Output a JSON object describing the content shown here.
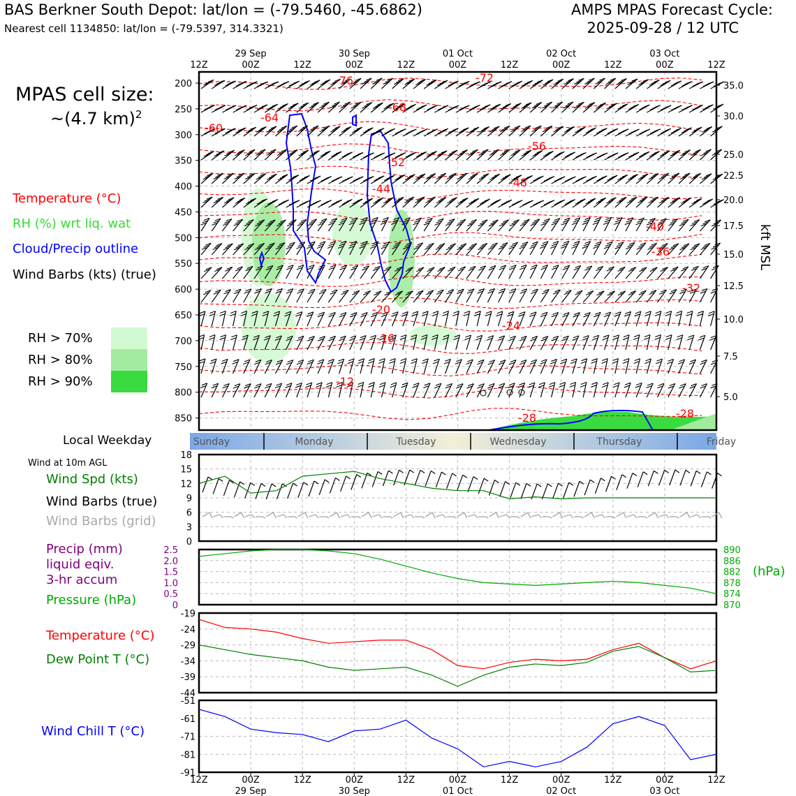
{
  "header": {
    "station": "BAS Berkner South Depot: lat/lon = (-79.5460, -45.6862)",
    "cell": "Nearest cell 1134850: lat/lon = (-79.5397, 314.3321)",
    "model": "AMPS MPAS Forecast Cycle:",
    "cycle": "2025-09-28 / 12 UTC"
  },
  "cell_size": {
    "line1": "MPAS cell size:",
    "line2_prefix": "~(4.7 km)",
    "line2_sup": "2"
  },
  "legend": {
    "temperature": "Temperature (°C)",
    "rh": "RH (%) wrt liq. wat",
    "cloud": "Cloud/Precip outline",
    "wind": "Wind Barbs (kts) (true)",
    "rh_levels": [
      "RH > 70%",
      "RH > 80%",
      "RH > 90%"
    ]
  },
  "colors": {
    "temperature": "#ff0000",
    "rh70": "#d2fad2",
    "rh80": "#a3eb9f",
    "rh90": "#3adb41",
    "cloud": "#0000ff",
    "wind_speed": "#008000",
    "pressure": "#00aa00",
    "precip": "#800080",
    "dewpoint": "#008000",
    "windchill": "#0000ff",
    "grid_barbs": "#aaaaaa"
  },
  "time_axis": {
    "hour_labels": [
      "12Z",
      "00Z",
      "12Z",
      "00Z",
      "12Z",
      "00Z",
      "12Z",
      "00Z",
      "12Z",
      "00Z",
      "12Z"
    ],
    "date_labels": [
      "29 Sep",
      "30 Sep",
      "01 Oct",
      "02 Oct",
      "03 Oct"
    ]
  },
  "weekday": {
    "title": "Local Weekday",
    "days": [
      "Sunday",
      "Monday",
      "Tuesday",
      "Wednesday",
      "Thursday",
      "Friday"
    ]
  },
  "surface_title": "Wind at 10m AGL",
  "panel_labels": {
    "wind_speed": "Wind Spd (kts)",
    "wind_barbs": "Wind Barbs (true)",
    "wind_barbs_grid": "Wind Barbs (grid)",
    "precip1": "Precip (mm)",
    "precip2": "liquid eqiv.",
    "precip3": "3-hr accum",
    "pressure": "Pressure (hPa)",
    "pressure_unit": "(hPa)",
    "temperature": "Temperature (°C)",
    "dewpoint": "Dew Point T (°C)",
    "windchill": "Wind Chill T (°C)"
  },
  "chart_data": [
    {
      "type": "contour",
      "name": "time-height cross section",
      "y_pressure_ticks": [
        200,
        250,
        300,
        350,
        400,
        450,
        500,
        550,
        600,
        650,
        700,
        750,
        800,
        850
      ],
      "y_height_ticks": [
        "35.0",
        "30.0",
        "25.0",
        "22.5",
        "20.0",
        "17.5",
        "15.0",
        "12.5",
        "10.0",
        "7.5",
        "5.0"
      ],
      "y_height_label": "kft MSL",
      "temperature_contour_labels": [
        "-76",
        "-72",
        "-68",
        "-64",
        "-60",
        "-56",
        "-52",
        "-48",
        "-44",
        "-40",
        "-36",
        "-32",
        "-28",
        "-28",
        "-24",
        "-20",
        "-16",
        "-12"
      ]
    },
    {
      "type": "line",
      "name": "wind speed",
      "ylim": [
        0,
        18
      ],
      "y_ticks": [
        0,
        3,
        6,
        9,
        12,
        15,
        18
      ],
      "x_hours": [
        0,
        6,
        12,
        18,
        24,
        30,
        36,
        42,
        48,
        54,
        60,
        66,
        72,
        78,
        84,
        90,
        96,
        102,
        108,
        114,
        120
      ],
      "values": [
        12,
        13.5,
        10,
        10.5,
        13.5,
        14,
        14.5,
        13,
        12,
        11,
        10.5,
        10.5,
        8.8,
        9.2,
        8.8,
        9,
        9,
        9,
        9,
        9,
        9
      ]
    },
    {
      "type": "line",
      "name": "pressure",
      "ylim": [
        870,
        890
      ],
      "y_ticks_left_precip": [
        "0",
        "0.5",
        "1.0",
        "1.5",
        "2.0",
        "2.5"
      ],
      "y_ticks_right": [
        870,
        874,
        878,
        882,
        886,
        890
      ],
      "x_hours": [
        0,
        6,
        12,
        18,
        24,
        30,
        36,
        42,
        48,
        54,
        60,
        66,
        72,
        78,
        84,
        90,
        96,
        102,
        108,
        114,
        120
      ],
      "values": [
        887.5,
        888.5,
        889.5,
        890,
        890,
        889.5,
        888.5,
        886.5,
        884,
        881.5,
        879.5,
        878,
        877.5,
        877,
        877.5,
        878,
        878.5,
        878,
        877,
        876,
        874
      ]
    },
    {
      "type": "line",
      "name": "temperature and dew point",
      "ylim": [
        -44,
        -19
      ],
      "y_ticks": [
        -19,
        -24,
        -29,
        -34,
        -39,
        -44
      ],
      "x_hours": [
        0,
        6,
        12,
        18,
        24,
        30,
        36,
        42,
        48,
        54,
        60,
        66,
        72,
        78,
        84,
        90,
        96,
        102,
        108,
        114,
        120
      ],
      "series": [
        {
          "name": "Temperature",
          "values": [
            -21,
            -23.5,
            -24,
            -25,
            -27,
            -28.5,
            -28,
            -27.5,
            -27.5,
            -30.5,
            -35.5,
            -36.5,
            -34.5,
            -33.5,
            -34,
            -33.5,
            -30.5,
            -28.5,
            -33,
            -36.5,
            -34
          ]
        },
        {
          "name": "Dew Point",
          "values": [
            -29,
            -30.5,
            -32,
            -33,
            -34,
            -36,
            -37,
            -36.5,
            -36,
            -38.5,
            -42,
            -38.5,
            -36,
            -35,
            -35.5,
            -34.5,
            -31,
            -29.5,
            -33,
            -37.5,
            -37
          ]
        }
      ]
    },
    {
      "type": "line",
      "name": "wind chill",
      "ylim": [
        -91,
        -51
      ],
      "y_ticks": [
        -51,
        -61,
        -71,
        -81,
        -91
      ],
      "x_hours": [
        0,
        6,
        12,
        18,
        24,
        30,
        36,
        42,
        48,
        54,
        60,
        66,
        72,
        78,
        84,
        90,
        96,
        102,
        108,
        114,
        120
      ],
      "values": [
        -56,
        -60,
        -67,
        -69,
        -70,
        -74,
        -68,
        -67,
        -62,
        -72,
        -78,
        -88,
        -85,
        -88,
        -85,
        -77,
        -64,
        -60,
        -65,
        -84,
        -81
      ]
    }
  ]
}
